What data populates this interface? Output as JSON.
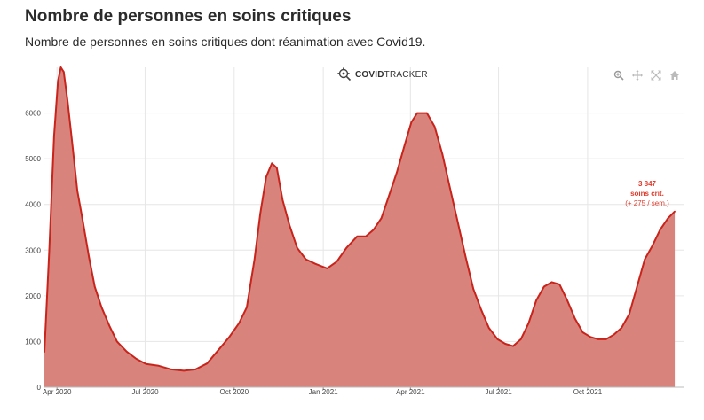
{
  "header": {
    "title": "Nombre de personnes en soins critiques",
    "subtitle": "Nombre de personnes en soins critiques dont réanimation avec Covid19."
  },
  "brand": {
    "bold": "COVID",
    "rest": "TRACKER"
  },
  "toolbar": {
    "icons": [
      "zoom-icon",
      "pan-icon",
      "autoscale-icon",
      "home-icon"
    ]
  },
  "colors": {
    "line": "#c8241b",
    "fill": "#d9837d",
    "grid": "#e6e6e6",
    "annotation": "#e03b2c"
  },
  "annotation": {
    "value": "3 847",
    "label": "soins crit.",
    "change": "(+ 275 / sem.)"
  },
  "chart_data": {
    "type": "area",
    "title": "",
    "xlabel": "",
    "ylabel": "",
    "ylim": [
      0,
      7000
    ],
    "yticks": [
      0,
      1000,
      2000,
      3000,
      4000,
      5000,
      6000
    ],
    "xlim": [
      "2020-03-19",
      "2022-01-09"
    ],
    "xticks": [
      {
        "date": "2020-04-01",
        "label": "Apr 2020"
      },
      {
        "date": "2020-07-01",
        "label": "Jul 2020"
      },
      {
        "date": "2020-10-01",
        "label": "Oct 2020"
      },
      {
        "date": "2021-01-01",
        "label": "Jan 2021"
      },
      {
        "date": "2021-04-01",
        "label": "Apr 2021"
      },
      {
        "date": "2021-07-01",
        "label": "Jul 2021"
      },
      {
        "date": "2021-10-01",
        "label": "Oct 2021"
      }
    ],
    "grid": true,
    "legend": "none",
    "series": [
      {
        "points": [
          [
            "2020-03-19",
            770
          ],
          [
            "2020-03-24",
            3000
          ],
          [
            "2020-03-29",
            5500
          ],
          [
            "2020-04-02",
            6700
          ],
          [
            "2020-04-05",
            7000
          ],
          [
            "2020-04-08",
            6900
          ],
          [
            "2020-04-12",
            6250
          ],
          [
            "2020-04-17",
            5300
          ],
          [
            "2020-04-22",
            4300
          ],
          [
            "2020-04-28",
            3600
          ],
          [
            "2020-05-04",
            2850
          ],
          [
            "2020-05-10",
            2200
          ],
          [
            "2020-05-17",
            1750
          ],
          [
            "2020-05-25",
            1350
          ],
          [
            "2020-06-02",
            1000
          ],
          [
            "2020-06-12",
            780
          ],
          [
            "2020-06-22",
            620
          ],
          [
            "2020-07-02",
            510
          ],
          [
            "2020-07-15",
            470
          ],
          [
            "2020-07-28",
            390
          ],
          [
            "2020-08-10",
            360
          ],
          [
            "2020-08-22",
            390
          ],
          [
            "2020-09-03",
            520
          ],
          [
            "2020-09-15",
            820
          ],
          [
            "2020-09-26",
            1100
          ],
          [
            "2020-10-06",
            1400
          ],
          [
            "2020-10-14",
            1750
          ],
          [
            "2020-10-22",
            2800
          ],
          [
            "2020-10-28",
            3800
          ],
          [
            "2020-11-03",
            4600
          ],
          [
            "2020-11-09",
            4900
          ],
          [
            "2020-11-14",
            4800
          ],
          [
            "2020-11-20",
            4100
          ],
          [
            "2020-11-27",
            3550
          ],
          [
            "2020-12-05",
            3050
          ],
          [
            "2020-12-14",
            2800
          ],
          [
            "2020-12-24",
            2700
          ],
          [
            "2021-01-05",
            2600
          ],
          [
            "2021-01-15",
            2750
          ],
          [
            "2021-01-25",
            3050
          ],
          [
            "2021-02-05",
            3300
          ],
          [
            "2021-02-14",
            3300
          ],
          [
            "2021-02-22",
            3450
          ],
          [
            "2021-03-02",
            3700
          ],
          [
            "2021-03-10",
            4200
          ],
          [
            "2021-03-18",
            4700
          ],
          [
            "2021-03-26",
            5300
          ],
          [
            "2021-04-02",
            5800
          ],
          [
            "2021-04-08",
            6000
          ],
          [
            "2021-04-18",
            6000
          ],
          [
            "2021-04-26",
            5700
          ],
          [
            "2021-05-04",
            5100
          ],
          [
            "2021-05-12",
            4350
          ],
          [
            "2021-05-20",
            3600
          ],
          [
            "2021-05-28",
            2850
          ],
          [
            "2021-06-05",
            2150
          ],
          [
            "2021-06-13",
            1700
          ],
          [
            "2021-06-21",
            1300
          ],
          [
            "2021-06-30",
            1050
          ],
          [
            "2021-07-08",
            950
          ],
          [
            "2021-07-16",
            900
          ],
          [
            "2021-07-24",
            1050
          ],
          [
            "2021-08-01",
            1400
          ],
          [
            "2021-08-09",
            1900
          ],
          [
            "2021-08-17",
            2200
          ],
          [
            "2021-08-25",
            2300
          ],
          [
            "2021-09-02",
            2250
          ],
          [
            "2021-09-10",
            1900
          ],
          [
            "2021-09-18",
            1500
          ],
          [
            "2021-09-26",
            1200
          ],
          [
            "2021-10-04",
            1100
          ],
          [
            "2021-10-12",
            1050
          ],
          [
            "2021-10-20",
            1050
          ],
          [
            "2021-10-28",
            1150
          ],
          [
            "2021-11-05",
            1300
          ],
          [
            "2021-11-13",
            1600
          ],
          [
            "2021-11-21",
            2200
          ],
          [
            "2021-11-29",
            2800
          ],
          [
            "2021-12-07",
            3100
          ],
          [
            "2021-12-15",
            3450
          ],
          [
            "2021-12-23",
            3700
          ],
          [
            "2021-12-30",
            3847
          ]
        ]
      }
    ]
  }
}
